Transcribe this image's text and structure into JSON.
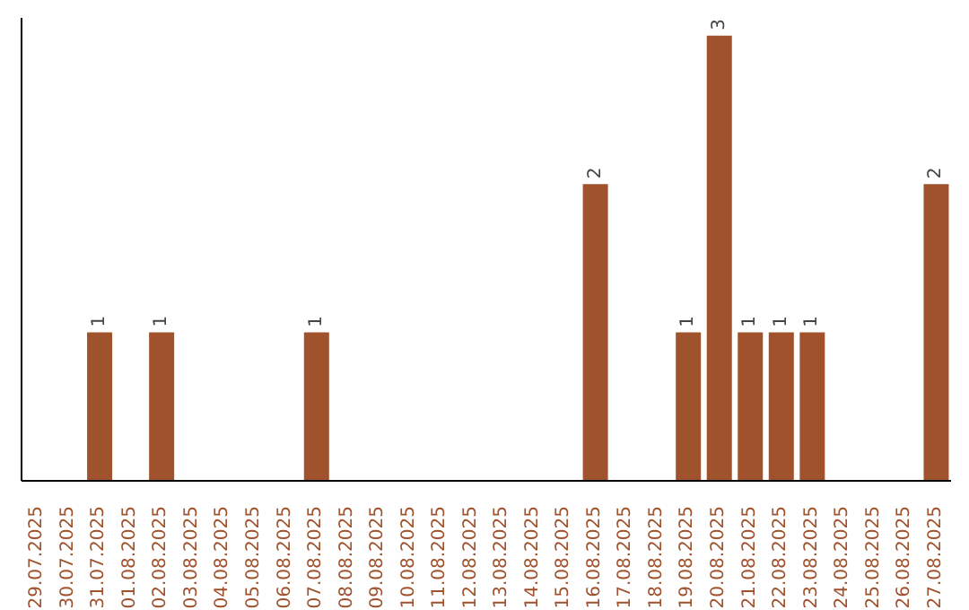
{
  "chart_data": {
    "type": "bar",
    "categories": [
      "29.07.2025",
      "30.07.2025",
      "31.07.2025",
      "01.08.2025",
      "02.08.2025",
      "03.08.2025",
      "04.08.2025",
      "05.08.2025",
      "06.08.2025",
      "07.08.2025",
      "08.08.2025",
      "09.08.2025",
      "10.08.2025",
      "11.08.2025",
      "12.08.2025",
      "13.08.2025",
      "14.08.2025",
      "15.08.2025",
      "16.08.2025",
      "17.08.2025",
      "18.08.2025",
      "19.08.2025",
      "20.08.2025",
      "21.08.2025",
      "22.08.2025",
      "23.08.2025",
      "24.08.2025",
      "25.08.2025",
      "26.08.2025",
      "27.08.2025"
    ],
    "values": [
      0,
      0,
      1,
      0,
      1,
      0,
      0,
      0,
      0,
      1,
      0,
      0,
      0,
      0,
      0,
      0,
      0,
      0,
      2,
      0,
      0,
      1,
      3,
      1,
      1,
      1,
      0,
      0,
      0,
      2
    ],
    "value_labels": [
      null,
      null,
      "1",
      null,
      "1",
      null,
      null,
      null,
      null,
      "1",
      null,
      null,
      null,
      null,
      null,
      null,
      null,
      null,
      "2",
      null,
      null,
      "1",
      "3",
      "1",
      "1",
      "1",
      null,
      null,
      null,
      "2"
    ],
    "color": "#a0522d",
    "relative": false,
    "grid": false,
    "legend": false
  }
}
